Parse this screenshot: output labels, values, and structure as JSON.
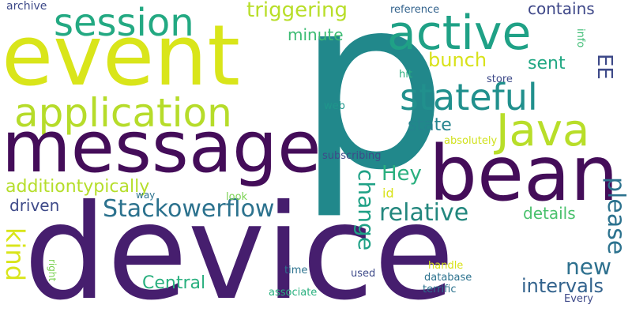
{
  "words": {
    "p": {
      "text": "p",
      "color": "#21888b"
    },
    "device": {
      "text": "device",
      "color": "#461e6e"
    },
    "event": {
      "text": "event",
      "color": "#d9e51a"
    },
    "message": {
      "text": "message",
      "color": "#440d59"
    },
    "bean": {
      "text": "bean",
      "color": "#440d59"
    },
    "active": {
      "text": "active",
      "color": "#1fa186"
    },
    "java": {
      "text": "Java",
      "color": "#b8de29"
    },
    "application": {
      "text": "application",
      "color": "#b6dc2a"
    },
    "session": {
      "text": "session",
      "color": "#23a982"
    },
    "stateful": {
      "text": "stateful",
      "color": "#21908d"
    },
    "stackowerflow": {
      "text": "Stackowerflow",
      "color": "#2c728e"
    },
    "relative": {
      "text": "relative",
      "color": "#23877e"
    },
    "triggering": {
      "text": "triggering",
      "color": "#b8de29"
    },
    "hey": {
      "text": "Hey",
      "color": "#2ab07f"
    },
    "new": {
      "text": "new",
      "color": "#2d708e"
    },
    "intervals": {
      "text": "intervals",
      "color": "#33638d"
    },
    "bunch": {
      "text": "bunch",
      "color": "#d8e219"
    },
    "additiontypically": {
      "text": "additiontypically",
      "color": "#b5de2b"
    },
    "central": {
      "text": "Central",
      "color": "#2ab07f"
    },
    "sent": {
      "text": "sent",
      "color": "#22a884"
    },
    "contains": {
      "text": "contains",
      "color": "#3f4889"
    },
    "minute": {
      "text": "minute",
      "color": "#3dbc74"
    },
    "state": {
      "text": "state",
      "color": "#25838e"
    },
    "details": {
      "text": "details",
      "color": "#4ac16d"
    },
    "driven": {
      "text": "driven",
      "color": "#3e4a89"
    },
    "archive": {
      "text": "archive",
      "color": "#3e4a89"
    },
    "reference": {
      "text": "reference",
      "color": "#33638d"
    },
    "hit": {
      "text": "hit",
      "color": "#2ab07f"
    },
    "store": {
      "text": "store",
      "color": "#3e4a89"
    },
    "web": {
      "text": "web",
      "color": "#1f968b"
    },
    "absolutely": {
      "text": "absolutely",
      "color": "#d0e11c"
    },
    "subscribing": {
      "text": "subscribing",
      "color": "#3e4a89"
    },
    "id": {
      "text": "id",
      "color": "#d8e219"
    },
    "way": {
      "text": "way",
      "color": "#2c728e"
    },
    "look": {
      "text": "look",
      "color": "#7ad151"
    },
    "time": {
      "text": "time",
      "color": "#2c728e"
    },
    "used": {
      "text": "used",
      "color": "#3e4a89"
    },
    "handle": {
      "text": "handle",
      "color": "#d8e219"
    },
    "database": {
      "text": "database",
      "color": "#2c728e"
    },
    "terrific": {
      "text": "terrific",
      "color": "#2c728e"
    },
    "associate": {
      "text": "associate",
      "color": "#2ab07f"
    },
    "every": {
      "text": "Every",
      "color": "#3e4a89"
    },
    "kind": {
      "text": "kind",
      "color": "#d9e51a"
    },
    "change": {
      "text": "change",
      "color": "#1fa186"
    },
    "please": {
      "text": "please",
      "color": "#2c728e"
    },
    "ee": {
      "text": "EE",
      "color": "#3e4a89"
    },
    "info": {
      "text": "info",
      "color": "#3dbc74"
    },
    "right": {
      "text": "right",
      "color": "#7ad151"
    }
  }
}
